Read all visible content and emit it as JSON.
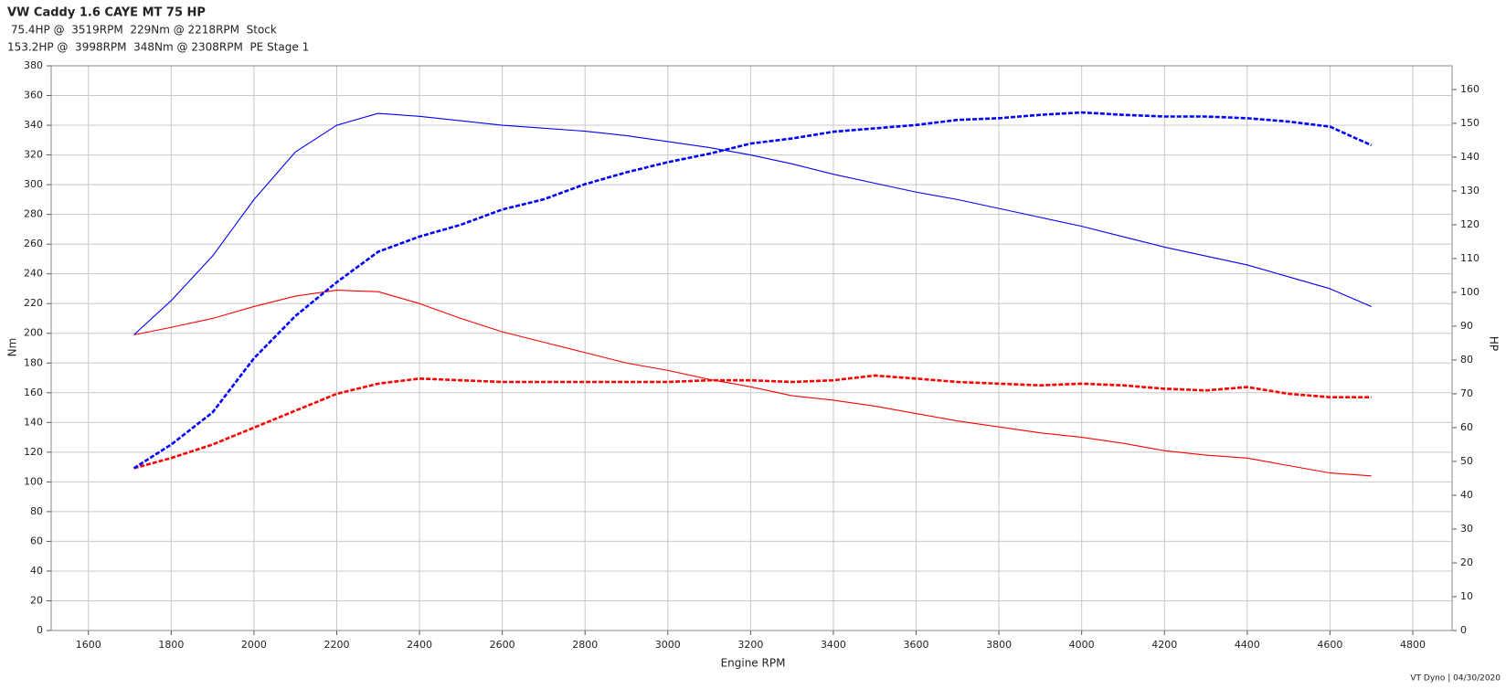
{
  "chart_data": {
    "type": "line",
    "title": "VW Caddy 1.6 CAYE MT 75 HP",
    "subtitles": [
      {
        "text": " 75.4HP @  3519RPM  229Nm @ 2218RPM  Stock",
        "color": "#ff0000"
      },
      {
        "text": "153.2HP @  3998RPM  348Nm @ 2308RPM  PE Stage 1",
        "color": "#0000ff"
      }
    ],
    "x_label": "Engine RPM",
    "y_label": "Nm",
    "y2_label": "HP",
    "footer": "VT Dyno | 04/30/2020",
    "x": [
      1710,
      1800,
      1900,
      2000,
      2100,
      2200,
      2300,
      2400,
      2500,
      2600,
      2700,
      2800,
      2900,
      3000,
      3100,
      3200,
      3300,
      3400,
      3500,
      3600,
      3700,
      3800,
      3900,
      4000,
      4100,
      4200,
      4300,
      4400,
      4500,
      4600,
      4700
    ],
    "series": [
      {
        "color": "#ff0000",
        "style": "solid",
        "axis": "y",
        "values": [
          199,
          204,
          210,
          218,
          225,
          229,
          228,
          220,
          210,
          201,
          194,
          187,
          180,
          175,
          169,
          164,
          158,
          155,
          151,
          146,
          141,
          137,
          133,
          130,
          126,
          121,
          118,
          116,
          111,
          106,
          104
        ]
      },
      {
        "color": "#ff0000",
        "style": "dashed",
        "axis": "y2",
        "values": [
          48,
          51,
          55,
          60,
          65,
          70,
          73,
          74.5,
          74,
          73.5,
          73.5,
          73.5,
          73.5,
          73.5,
          74,
          74,
          73.5,
          74,
          75.4,
          74.5,
          73.5,
          73,
          72.5,
          73,
          72.5,
          71.5,
          71,
          72,
          70,
          69,
          69
        ]
      },
      {
        "color": "#0000ff",
        "style": "solid",
        "axis": "y",
        "values": [
          199,
          222,
          252,
          290,
          322,
          340,
          348,
          346,
          343,
          340,
          338,
          336,
          333,
          329,
          325,
          320,
          314,
          307,
          301,
          295,
          290,
          284,
          278,
          272,
          265,
          258,
          252,
          246,
          238,
          230,
          218
        ]
      },
      {
        "color": "#0000ff",
        "style": "dashed",
        "axis": "y2",
        "values": [
          48,
          55,
          64.5,
          80.5,
          93,
          103,
          112,
          116.5,
          120,
          124.5,
          127.5,
          132,
          135.5,
          138.5,
          141,
          144,
          145.5,
          147.5,
          148.5,
          149.5,
          151,
          151.5,
          152.5,
          153.2,
          152.5,
          152,
          152,
          151.5,
          150.5,
          149,
          143.5
        ]
      }
    ],
    "xlim": [
      1510,
      4895
    ],
    "xticks": [
      1600,
      1800,
      2000,
      2200,
      2400,
      2600,
      2800,
      3000,
      3200,
      3400,
      3600,
      3800,
      4000,
      4200,
      4400,
      4600,
      4800
    ],
    "ylim": [
      0,
      380
    ],
    "yticks": [
      0,
      20,
      40,
      60,
      80,
      100,
      120,
      140,
      160,
      180,
      200,
      220,
      240,
      260,
      280,
      300,
      320,
      340,
      360,
      380
    ],
    "y2lim": [
      0,
      167
    ],
    "y2ticks": [
      0,
      10,
      20,
      30,
      40,
      50,
      60,
      70,
      80,
      90,
      100,
      110,
      120,
      130,
      140,
      150,
      160
    ],
    "grid": true
  }
}
